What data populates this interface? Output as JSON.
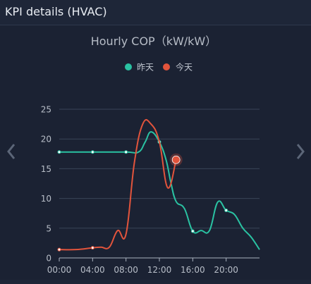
{
  "panel": {
    "title": "KPI details (HVAC)"
  },
  "icons": {
    "prev": "chevron-left-icon",
    "next": "chevron-right-icon"
  },
  "chart_data": {
    "type": "line",
    "title": "Hourly COP（kW/kW）",
    "xlabel": "",
    "ylabel": "",
    "xlim": [
      0,
      24
    ],
    "ylim": [
      0,
      25
    ],
    "x_ticks": [
      "00:00",
      "04:00",
      "08:00",
      "12:00",
      "16:00",
      "20:00"
    ],
    "x_tick_values": [
      0,
      4,
      8,
      12,
      16,
      20
    ],
    "y_ticks": [
      0,
      5,
      10,
      15,
      20,
      25
    ],
    "grid": true,
    "legend": "top-center",
    "series": [
      {
        "name": "昨天",
        "color": "#2ac2a2",
        "x": [
          0,
          4,
          8,
          9.5,
          10.3,
          11,
          12,
          12.8,
          13.4,
          14,
          15,
          16,
          17,
          18,
          19,
          20,
          21,
          22,
          23,
          24
        ],
        "y": [
          17.8,
          17.8,
          17.8,
          17.8,
          19.5,
          21.2,
          19.5,
          16.5,
          12.5,
          9.5,
          8.3,
          4.5,
          4.6,
          4.6,
          9.4,
          8.0,
          7.3,
          5.0,
          3.5,
          1.4
        ],
        "markers": [
          0,
          4,
          8,
          12,
          16,
          20
        ]
      },
      {
        "name": "今天",
        "color": "#e2543c",
        "x": [
          0,
          2,
          4,
          5,
          6,
          7,
          8,
          9,
          10,
          11,
          12,
          13,
          14
        ],
        "y": [
          1.4,
          1.4,
          1.7,
          1.8,
          1.8,
          4.6,
          4.0,
          16.0,
          22.5,
          22.5,
          19.5,
          11.8,
          16.5
        ],
        "markers": [
          0,
          4,
          14
        ]
      }
    ]
  }
}
